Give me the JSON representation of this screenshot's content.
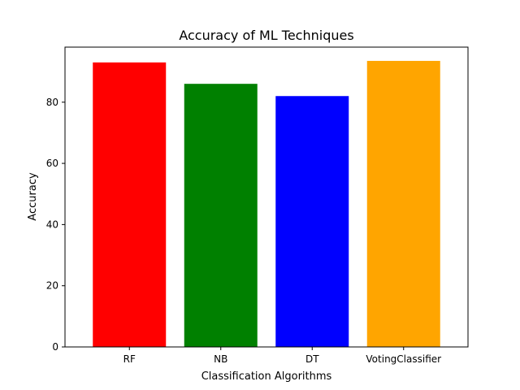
{
  "chart_data": {
    "type": "bar",
    "title": "Accuracy of ML Techniques",
    "xlabel": "Classification Algorithms",
    "ylabel": "Accuracy",
    "categories": [
      "RF",
      "NB",
      "DT",
      "VotingClassifier"
    ],
    "values": [
      93,
      86,
      82,
      93.5
    ],
    "colors": [
      "#ff0000",
      "#008000",
      "#0000ff",
      "#ffa500"
    ],
    "ylim": [
      0,
      98
    ],
    "yticks": [
      0,
      20,
      40,
      60,
      80
    ],
    "grid": false,
    "legend": "none"
  }
}
